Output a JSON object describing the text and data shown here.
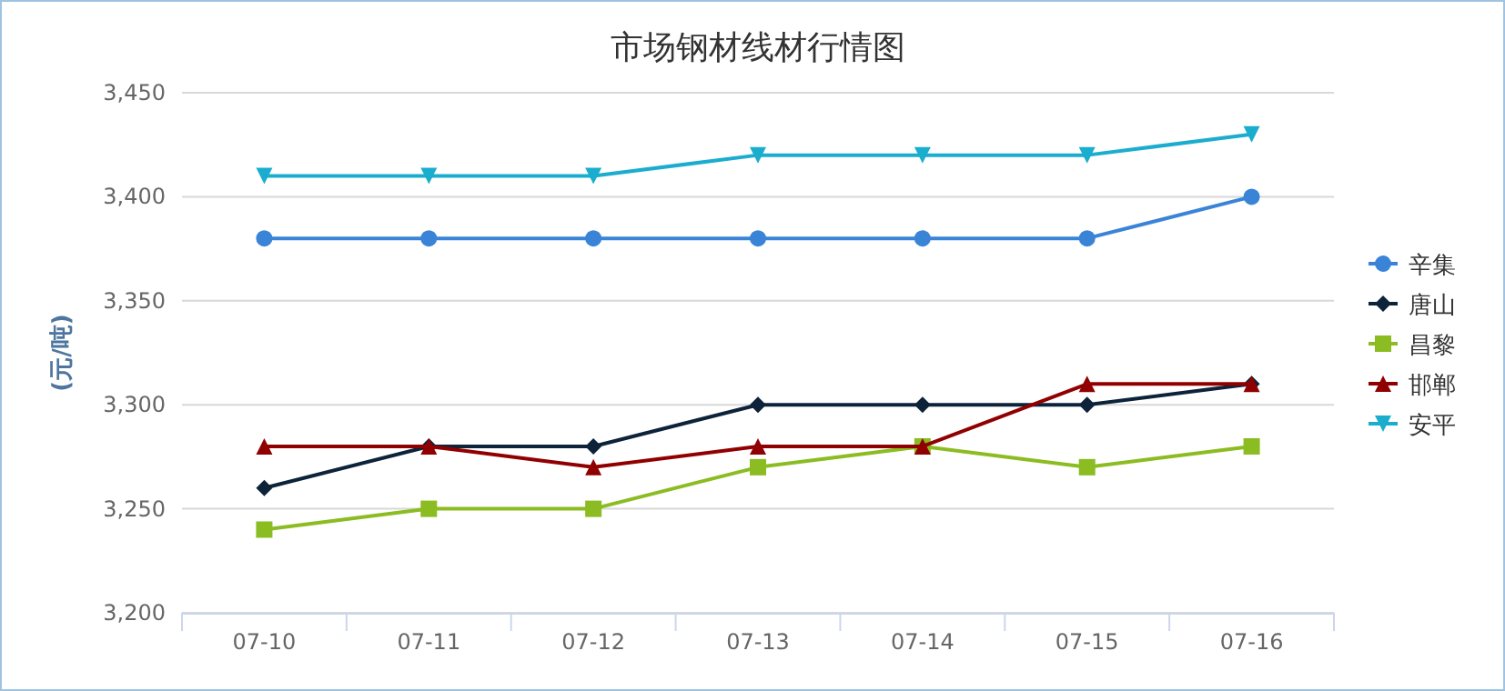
{
  "chart_data": {
    "type": "line",
    "title": "市场钢材线材行情图",
    "ylabel": "(元/吨)",
    "categories": [
      "07-10",
      "07-11",
      "07-12",
      "07-13",
      "07-14",
      "07-15",
      "07-16"
    ],
    "series": [
      {
        "name": "辛集",
        "color": "#3a84d8",
        "marker": "circle",
        "values": [
          3380,
          3380,
          3380,
          3380,
          3380,
          3380,
          3400
        ]
      },
      {
        "name": "唐山",
        "color": "#0d233a",
        "marker": "diamond",
        "values": [
          3260,
          3280,
          3280,
          3300,
          3300,
          3300,
          3310
        ]
      },
      {
        "name": "昌黎",
        "color": "#8bbc21",
        "marker": "square",
        "values": [
          3240,
          3250,
          3250,
          3270,
          3280,
          3270,
          3280
        ]
      },
      {
        "name": "邯郸",
        "color": "#910000",
        "marker": "triangle",
        "values": [
          3280,
          3280,
          3270,
          3280,
          3280,
          3310,
          3310
        ]
      },
      {
        "name": "安平",
        "color": "#1aadce",
        "marker": "triangle-down",
        "values": [
          3410,
          3410,
          3410,
          3420,
          3420,
          3420,
          3430
        ]
      }
    ],
    "ylim": [
      3200,
      3450
    ],
    "yticks": [
      {
        "value": 3200,
        "label": "3,200"
      },
      {
        "value": 3250,
        "label": "3,250"
      },
      {
        "value": 3300,
        "label": "3,300"
      },
      {
        "value": 3350,
        "label": "3,350"
      },
      {
        "value": 3400,
        "label": "3,400"
      },
      {
        "value": 3450,
        "label": "3,450"
      }
    ],
    "grid": "y",
    "legend": "right"
  }
}
